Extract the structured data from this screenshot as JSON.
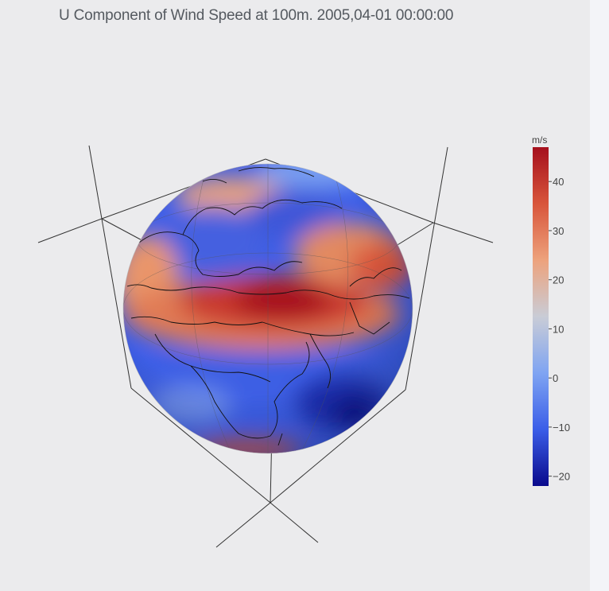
{
  "chart_data": {
    "type": "heatmap",
    "projection": "orthographic globe",
    "title": "U Component of Wind Speed at 100m. 2005,04-01 00:00:00",
    "colorbar": {
      "unit": "m/s",
      "ticks": [
        40,
        30,
        20,
        10,
        0,
        -10,
        -20
      ],
      "range": [
        -22,
        47
      ],
      "colors": [
        "#0a0a8c",
        "#3b5ee8",
        "#7fa4f2",
        "#c9ccd6",
        "#eda27c",
        "#d8553b",
        "#a5101d"
      ]
    },
    "field_features": [
      {
        "region": "Sahara / Middle East / South Asia jet",
        "approx_value": 42
      },
      {
        "region": "Northern Europe / Scandinavia",
        "approx_value": 0
      },
      {
        "region": "Arctic / North Atlantic band",
        "approx_value": 25
      },
      {
        "region": "Equatorial Africa / Indian Ocean",
        "approx_value": -10
      },
      {
        "region": "Southern Indian Ocean",
        "approx_value": -20
      }
    ]
  },
  "colors": {
    "background": "#ebebed",
    "coastline": "#111111",
    "axes_lines": "#333333"
  }
}
